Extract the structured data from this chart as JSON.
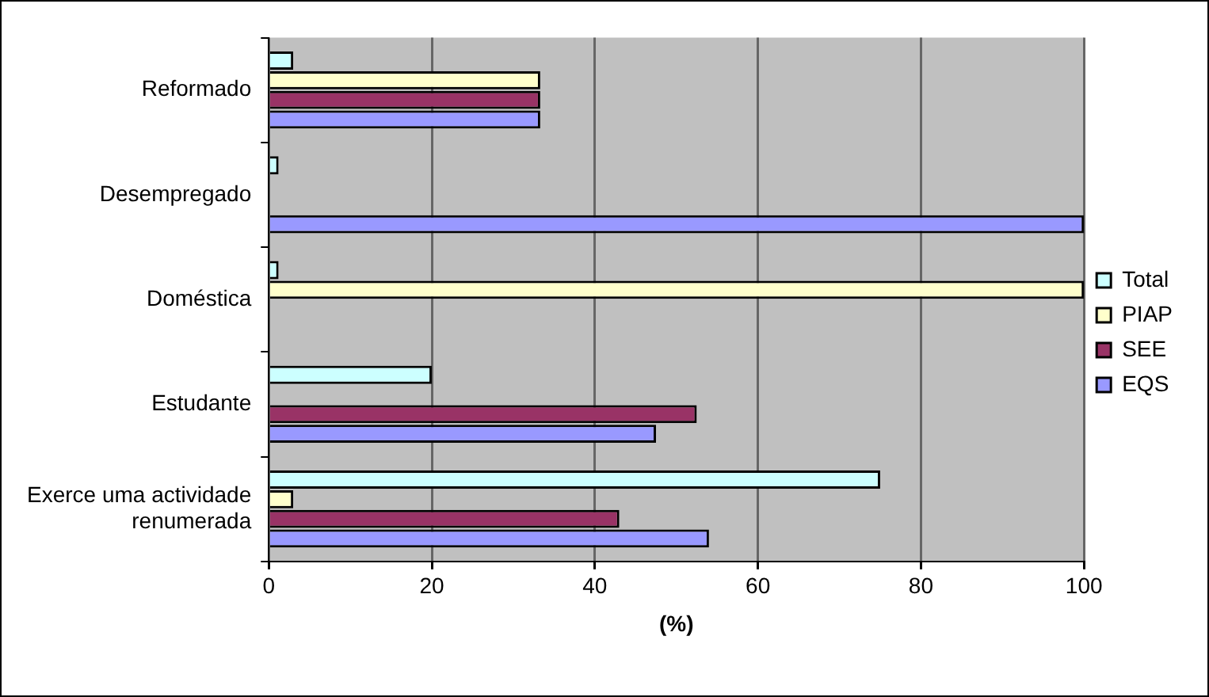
{
  "chart_data": {
    "type": "bar",
    "orientation": "horizontal",
    "xlabel": "(%)",
    "categories": [
      "Reformado",
      "Desempregado",
      "Doméstica",
      "Estudante",
      "Exerce uma actividade renumerada"
    ],
    "series": [
      {
        "name": "Total",
        "color": "#ccffff",
        "values": [
          3,
          1.2,
          1.2,
          20,
          75
        ]
      },
      {
        "name": "PIAP",
        "color": "#ffffcc",
        "values": [
          33.3,
          null,
          100,
          null,
          3
        ]
      },
      {
        "name": "SEE",
        "color": "#993366",
        "values": [
          33.3,
          null,
          null,
          52.5,
          43
        ]
      },
      {
        "name": "EQS",
        "color": "#9999ff",
        "values": [
          33.3,
          100,
          null,
          47.5,
          54
        ]
      }
    ],
    "xlim": [
      0,
      100
    ],
    "xticks": [
      0,
      20,
      40,
      60,
      80,
      100
    ],
    "grid": "x",
    "legend": "right"
  }
}
